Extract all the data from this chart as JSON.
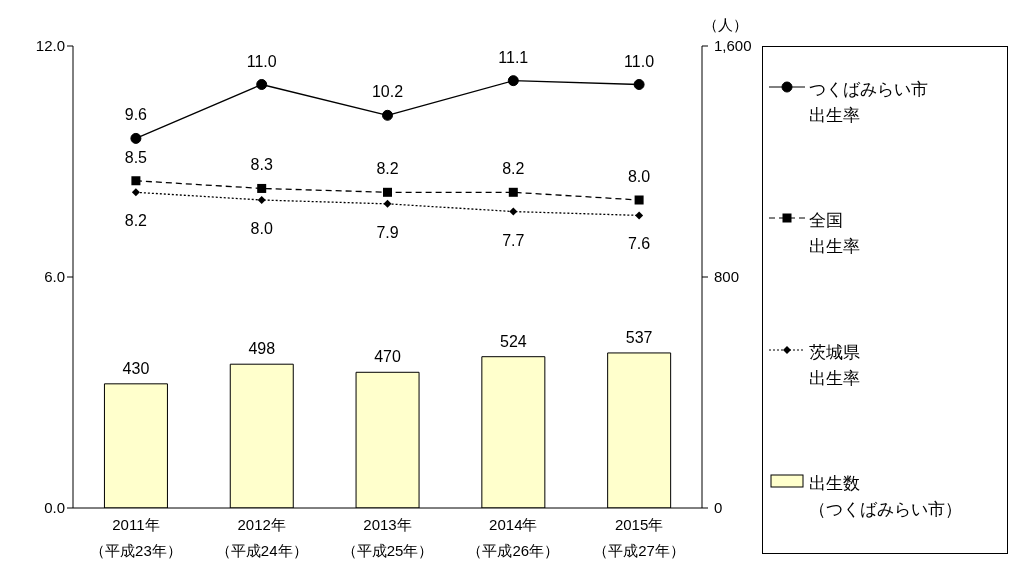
{
  "chart_data": {
    "type": "line",
    "categories": [
      "2011年（平成23年）",
      "2012年（平成24年）",
      "2013年（平成25年）",
      "2014年（平成26年）",
      "2015年（平成27年）"
    ],
    "y2label": "（人）",
    "ylim": [
      0,
      12
    ],
    "yticks": [
      {
        "value": 0,
        "label": "0.0"
      },
      {
        "value": 6,
        "label": "6.0"
      },
      {
        "value": 12,
        "label": "12.0"
      }
    ],
    "y2lim": [
      0,
      1600
    ],
    "y2ticks": [
      0,
      800,
      {
        "value": 1600,
        "label": "1,600"
      }
    ],
    "series": [
      {
        "name": "つくばみらい市出生率",
        "color": "#000000",
        "marker": "circle",
        "line_style": "solid",
        "values": [
          9.6,
          11.0,
          10.2,
          11.1,
          11.0
        ],
        "value_labels": [
          "9.6",
          "11.0",
          "10.2",
          "11.1",
          "11.0"
        ]
      },
      {
        "name": "全国出生率",
        "color": "#000000",
        "marker": "square",
        "line_style": "dashed",
        "values": [
          8.5,
          8.3,
          8.2,
          8.2,
          8.0
        ],
        "value_labels": [
          "8.5",
          "8.3",
          "8.2",
          "8.2",
          "8.0"
        ]
      },
      {
        "name": "茨城県出生率",
        "color": "#000000",
        "marker": "diamond",
        "line_style": "dotted",
        "values": [
          8.2,
          8.0,
          7.9,
          7.7,
          7.6
        ],
        "value_labels": [
          "8.2",
          "8.0",
          "7.9",
          "7.7",
          "7.6"
        ]
      },
      {
        "name": "出生数（つくばみらい市）",
        "type": "bar",
        "axis": "y2",
        "color": "#ffffcc",
        "values": [
          430,
          498,
          470,
          524,
          537
        ],
        "data_labels": true
      }
    ],
    "legend": "right"
  }
}
